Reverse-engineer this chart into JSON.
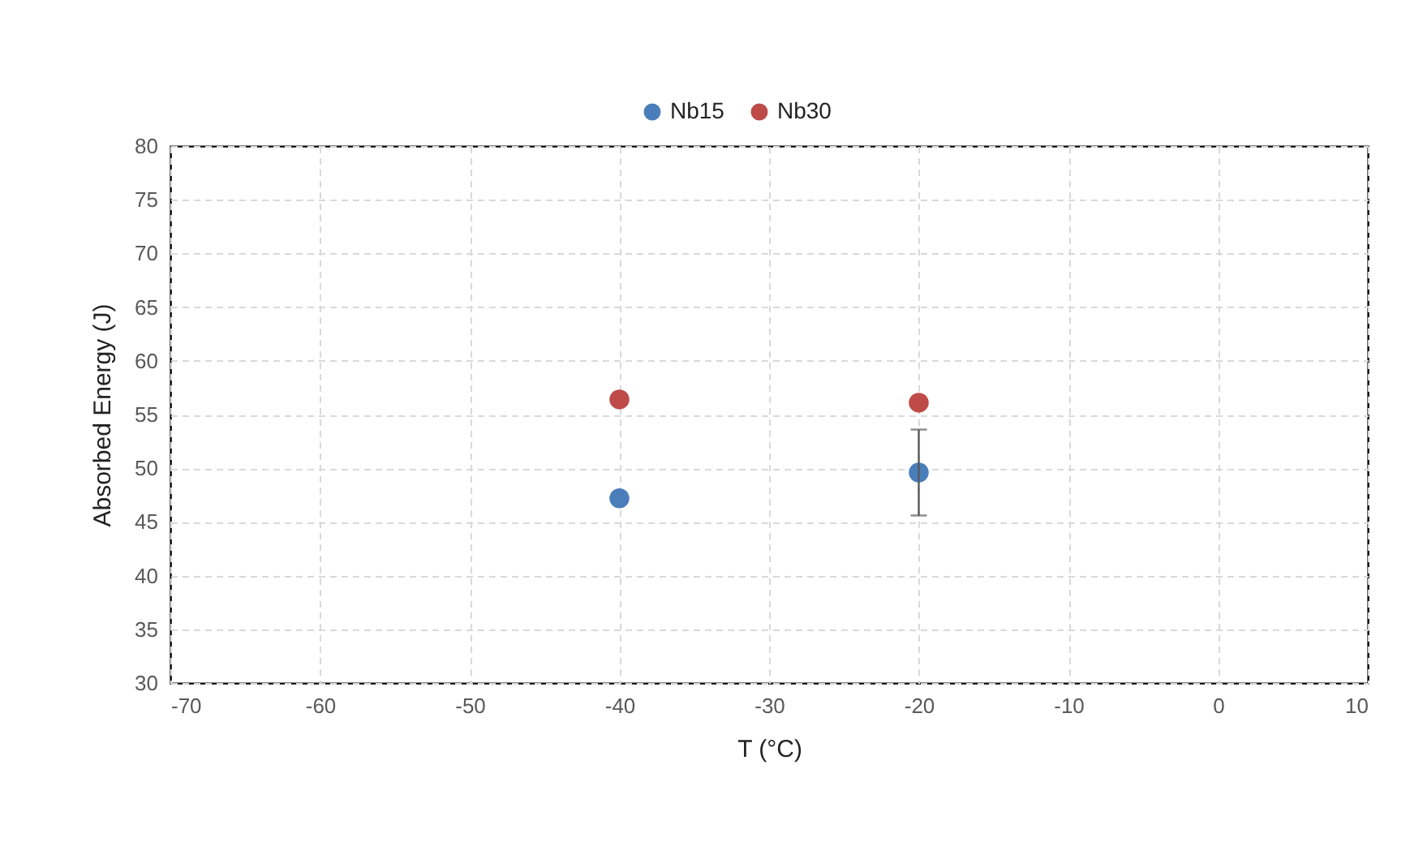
{
  "chart_data": {
    "type": "scatter",
    "xlabel": "T (°C)",
    "ylabel": "Absorbed Energy (J)",
    "x": [
      -40,
      -20
    ],
    "series": [
      {
        "name": "Nb15",
        "color": "#4a7ebb",
        "values": [
          47.2,
          49.6
        ],
        "errors": [
          null,
          4
        ]
      },
      {
        "name": "Nb30",
        "color": "#be4b48",
        "values": [
          56.4,
          56.1
        ]
      }
    ],
    "xlim": [
      -70,
      10
    ],
    "xticks": [
      -70,
      -60,
      -50,
      -40,
      -30,
      -20,
      -10,
      0,
      10
    ],
    "ylim": [
      30,
      80
    ],
    "yticks": [
      30,
      35,
      40,
      45,
      50,
      55,
      60,
      65,
      70,
      75,
      80
    ],
    "grid": true,
    "legend": "top",
    "marker": "circle"
  }
}
